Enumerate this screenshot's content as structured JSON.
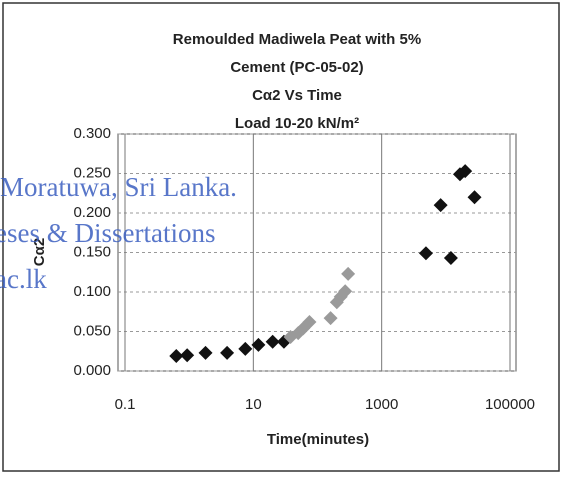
{
  "chart_data": {
    "type": "scatter",
    "title": [
      "Remoulded Madiwela Peat with 5%",
      "Cement (PC-05-02)",
      "Cα2 Vs Time",
      "Load 10-20 kN/m²"
    ],
    "x_label": "Time(minutes)",
    "y_label": "Cα2",
    "x": [
      0.63,
      0.93,
      1.8,
      3.9,
      7.5,
      12,
      20,
      30,
      38,
      50,
      60,
      75,
      160,
      200,
      230,
      270,
      300,
      4900,
      8300,
      12000,
      16600,
      20000,
      28000
    ],
    "values": [
      0.019,
      0.02,
      0.023,
      0.023,
      0.028,
      0.033,
      0.037,
      0.037,
      0.043,
      0.048,
      0.054,
      0.062,
      0.067,
      0.087,
      0.094,
      0.101,
      0.123,
      0.149,
      0.21,
      0.143,
      0.249,
      0.253,
      0.22
    ],
    "colors": [
      "#111111",
      "#111111",
      "#111111",
      "#111111",
      "#111111",
      "#111111",
      "#111111",
      "#111111",
      "#9a9a9a",
      "#9a9a9a",
      "#9a9a9a",
      "#9a9a9a",
      "#9a9a9a",
      "#9a9a9a",
      "#9a9a9a",
      "#9a9a9a",
      "#9a9a9a",
      "#111111",
      "#111111",
      "#111111",
      "#111111",
      "#111111",
      "#111111"
    ],
    "xlim": [
      0.1,
      100000
    ],
    "xscale": "log",
    "xticks": [
      0.1,
      10,
      1000,
      100000
    ],
    "ylim": [
      0,
      0.3
    ],
    "yticks": [
      {
        "value": 0,
        "label": "0.000"
      },
      {
        "value": 0.05,
        "label": "0.050"
      },
      {
        "value": 0.1,
        "label": "0.100"
      },
      {
        "value": 0.15,
        "label": "0.150"
      },
      {
        "value": 0.2,
        "label": "0.200"
      },
      {
        "value": 0.25,
        "label": "0.250"
      },
      {
        "value": 0.3,
        "label": "0.300"
      }
    ],
    "grid": true
  },
  "watermark": [
    "Moratuwa, Sri Lanka.",
    "eses & Dissertations",
    "ac.lk"
  ]
}
